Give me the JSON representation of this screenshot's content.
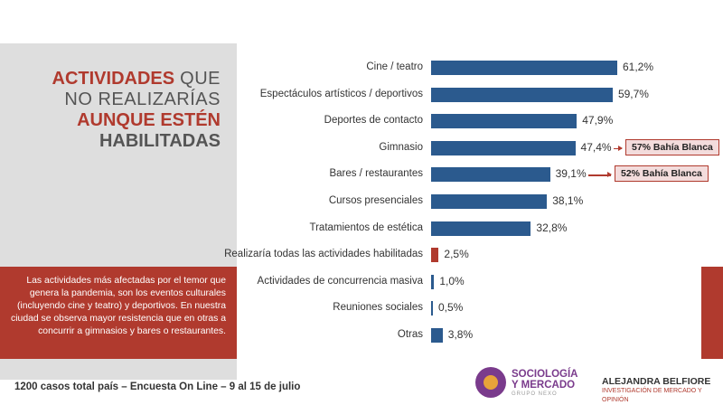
{
  "title": {
    "line1_accent": "ACTIVIDADES",
    "line1_rest": " QUE",
    "line2": "NO REALIZARÍAS",
    "line3": "AUNQUE ESTÉN",
    "line4": "HABILITADAS"
  },
  "note": "Las actividades más afectadas por el temor que genera la pandemia, son los eventos culturales (incluyendo cine y teatro) y deportivos. En nuestra ciudad se observa mayor resistencia que en otras a concurrir a gimnasios y bares o restaurantes.",
  "footer": "1200 casos total país – Encuesta On Line – 9 al 15 de julio",
  "logos": {
    "brand1_line1": "SOCIOLOGÍA",
    "brand1_line2": "Y MERCADO",
    "brand1_sub": "GRUPO NEXO",
    "brand2_name": "ALEJANDRA BELFIORE",
    "brand2_sub": "INVESTIGACIÓN DE MERCADO Y OPINIÓN"
  },
  "colors": {
    "bar": "#2b5a8e",
    "highlight": "#b03a2e"
  },
  "chart_data": {
    "type": "bar",
    "orientation": "horizontal",
    "categories": [
      "Cine / teatro",
      "Espectáculos artísticos / deportivos",
      "Deportes de contacto",
      "Gimnasio",
      "Bares / restaurantes",
      "Cursos presenciales",
      "Tratamientos de estética",
      "Realizaría todas las actividades habilitadas",
      "Actividades de concurrencia masiva",
      "Reuniones sociales",
      "Otras"
    ],
    "values": [
      61.2,
      59.7,
      47.9,
      47.4,
      39.1,
      38.1,
      32.8,
      2.5,
      1.0,
      0.5,
      3.8
    ],
    "value_labels": [
      "61,2%",
      "59,7%",
      "47,9%",
      "47,4%",
      "39,1%",
      "38,1%",
      "32,8%",
      "2,5%",
      "1,0%",
      "0,5%",
      "3,8%"
    ],
    "highlighted_index": 7,
    "callouts": [
      {
        "category_index": 3,
        "text": "57% Bahía Blanca"
      },
      {
        "category_index": 4,
        "text": "52% Bahía Blanca"
      }
    ]
  }
}
